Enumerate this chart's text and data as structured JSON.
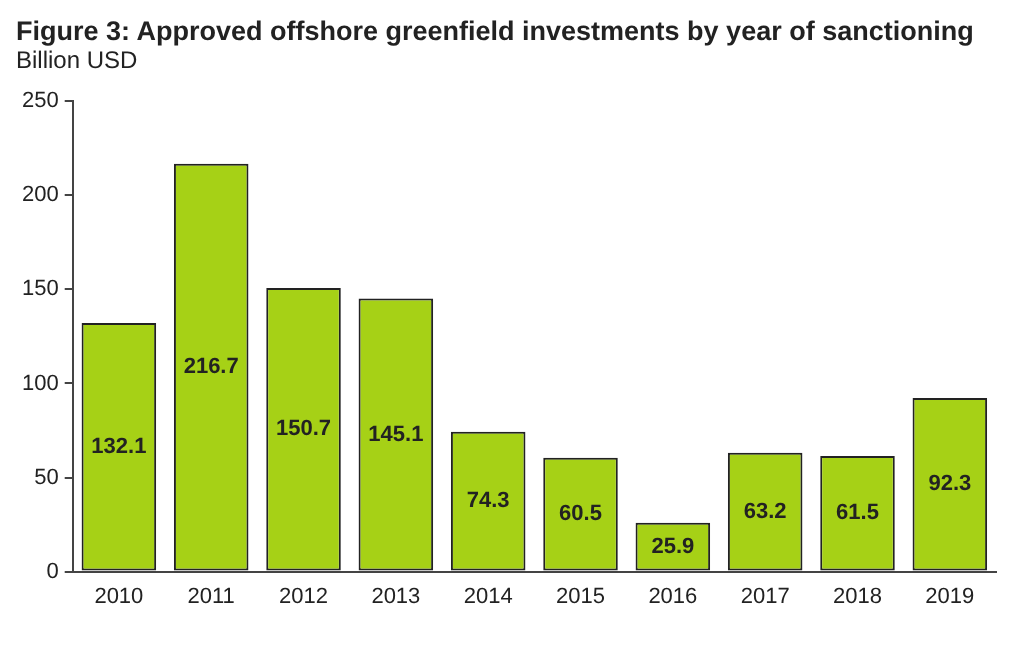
{
  "chart_data": {
    "type": "bar",
    "title": "Figure 3: Approved offshore greenfield investments by year of sanctioning",
    "subtitle": "Billion USD",
    "categories": [
      "2010",
      "2011",
      "2012",
      "2013",
      "2014",
      "2015",
      "2016",
      "2017",
      "2018",
      "2019"
    ],
    "values": [
      132.1,
      216.7,
      150.7,
      145.1,
      74.3,
      60.5,
      25.9,
      63.2,
      61.5,
      92.3
    ],
    "color": "#a6d116",
    "ylim": [
      0,
      250
    ],
    "yticks": [
      0,
      50,
      100,
      150,
      200,
      250
    ],
    "grid": false,
    "legend": false,
    "data_labels": true
  }
}
